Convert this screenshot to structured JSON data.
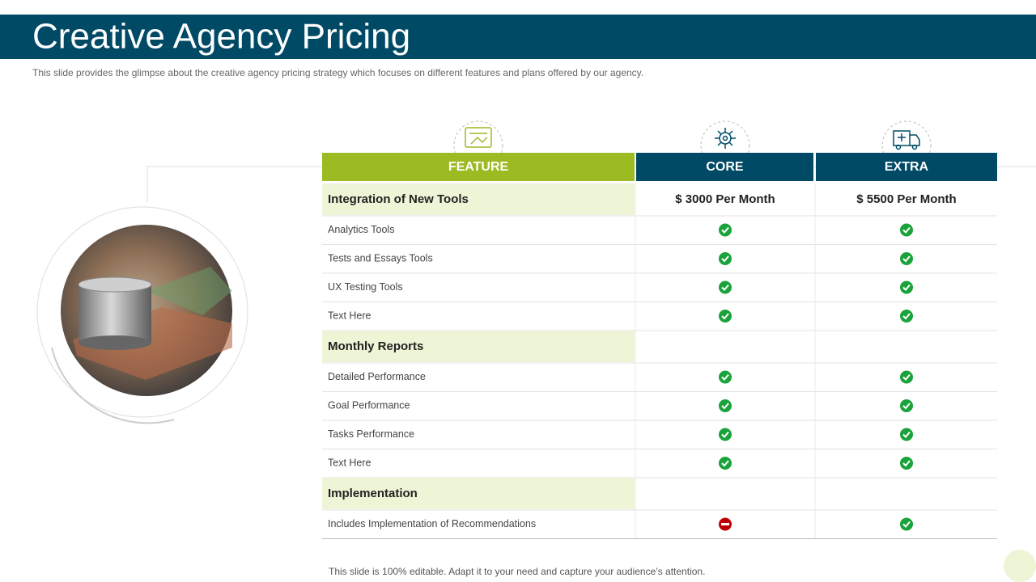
{
  "header": {
    "title": "Creative Agency Pricing",
    "subtitle": "This slide provides the glimpse about the creative agency pricing strategy which focuses on different features and plans offered by our agency."
  },
  "table": {
    "columns": [
      "FEATURE",
      "CORE",
      "EXTRA"
    ],
    "sections": [
      {
        "title": "Integration of New Tools",
        "core": "$ 3000 Per Month",
        "extra": "$ 5500 Per Month",
        "items": [
          {
            "label": "Analytics Tools",
            "core": true,
            "extra": true
          },
          {
            "label": "Tests and Essays Tools",
            "core": true,
            "extra": true
          },
          {
            "label": "UX Testing Tools",
            "core": true,
            "extra": true
          },
          {
            "label": "Text Here",
            "core": true,
            "extra": true
          }
        ]
      },
      {
        "title": "Monthly Reports",
        "items": [
          {
            "label": "Detailed Performance",
            "core": true,
            "extra": true
          },
          {
            "label": "Goal Performance",
            "core": true,
            "extra": true
          },
          {
            "label": "Tasks Performance",
            "core": true,
            "extra": true
          },
          {
            "label": "Text Here",
            "core": true,
            "extra": true
          }
        ]
      },
      {
        "title": "Implementation",
        "items": [
          {
            "label": "Includes Implementation of Recommendations",
            "core": false,
            "extra": true
          }
        ]
      }
    ]
  },
  "footer": "This slide is 100% editable. Adapt it to your need and capture your audience’s attention."
}
